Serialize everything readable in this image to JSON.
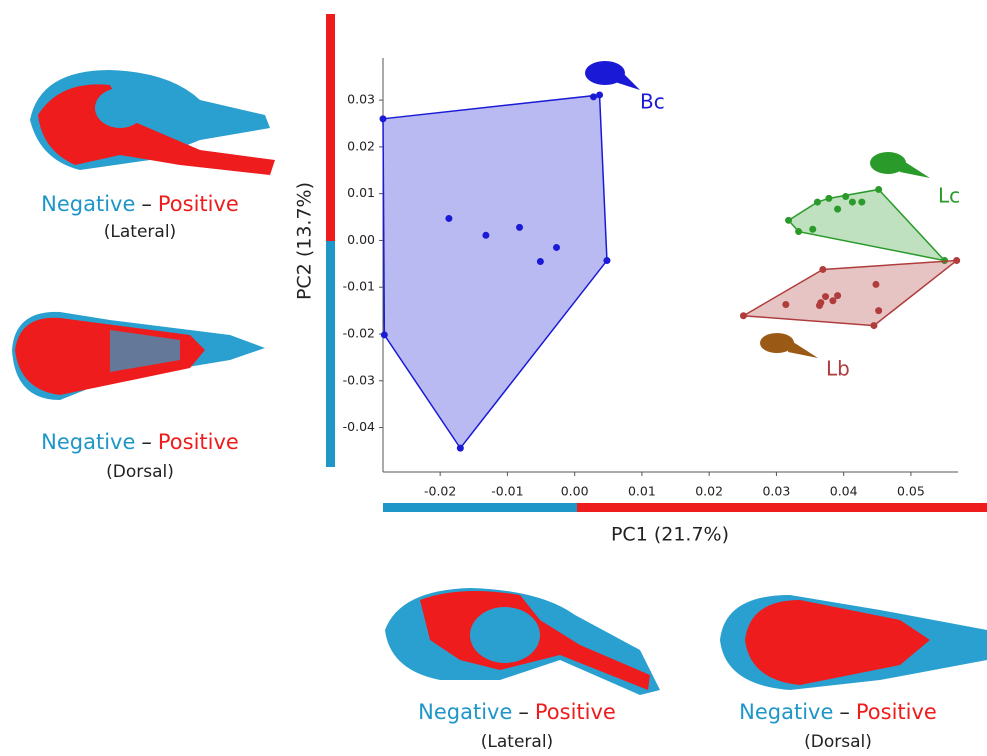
{
  "chart_data": {
    "type": "scatter",
    "xlabel": "PC1 (21.7%)",
    "ylabel": "PC2 (13.7%)",
    "xlim": [
      -0.0285,
      0.057
    ],
    "ylim": [
      -0.0495,
      0.039
    ],
    "xticks": [
      -0.02,
      -0.01,
      {
        "value": 0,
        "label": "0.00"
      },
      0.01,
      0.02,
      0.03,
      0.04,
      0.05
    ],
    "yticks": [
      0.03,
      0.02,
      0.01,
      {
        "value": 0,
        "label": "0.00"
      },
      -0.01,
      -0.02,
      -0.03,
      -0.04
    ],
    "series": [
      {
        "name": "Bc",
        "color": "#1a1ad6",
        "x": [
          -0.0285,
          0.0028,
          0.0037,
          0.0048,
          -0.017,
          -0.0283,
          -0.0187,
          -0.0132,
          -0.0082,
          -0.0051,
          -0.0027
        ],
        "values": [
          0.026,
          0.0307,
          0.0311,
          -0.0043,
          -0.0444,
          -0.0202,
          0.0047,
          0.0011,
          0.0028,
          -0.0045,
          -0.0015
        ]
      },
      {
        "name": "Lc",
        "color": "#2a9a2a",
        "x": [
          0.0318,
          0.0333,
          0.0354,
          0.0361,
          0.0378,
          0.0391,
          0.0403,
          0.0413,
          0.0427,
          0.0452,
          0.055
        ],
        "values": [
          0.0043,
          0.0019,
          0.0024,
          0.0082,
          0.009,
          0.0067,
          0.0094,
          0.0082,
          0.0082,
          0.0109,
          -0.0043
        ]
      },
      {
        "name": "Lb",
        "color": "#b03c3c",
        "x": [
          0.0251,
          0.0314,
          0.0366,
          0.0369,
          0.0364,
          0.0373,
          0.0384,
          0.0391,
          0.0448,
          0.0452,
          0.0445,
          0.0568
        ],
        "values": [
          -0.0161,
          -0.0137,
          -0.0133,
          -0.0062,
          -0.0139,
          -0.012,
          -0.0129,
          -0.0118,
          -0.0094,
          -0.015,
          -0.0182,
          -0.0043
        ]
      }
    ]
  },
  "panels": [
    {
      "negative": "Negative",
      "dash": "–",
      "positive": "Positive",
      "view": "(Lateral)"
    },
    {
      "negative": "Negative",
      "dash": "–",
      "positive": "Positive",
      "view": "(Dorsal)"
    },
    {
      "negative": "Negative",
      "dash": "–",
      "positive": "Positive",
      "view": "(Lateral)"
    },
    {
      "negative": "Negative",
      "dash": "–",
      "positive": "Positive",
      "view": "(Dorsal)"
    }
  ]
}
